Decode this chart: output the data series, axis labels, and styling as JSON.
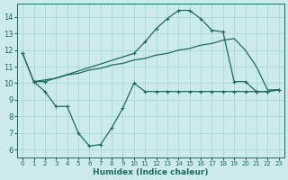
{
  "line1_x": [
    0,
    1,
    2,
    3,
    4,
    5,
    6,
    7,
    8,
    9,
    10,
    11,
    12,
    13,
    14,
    15,
    16,
    17,
    18,
    19,
    20,
    21,
    22,
    23
  ],
  "line1_y": [
    11.8,
    10.1,
    9.5,
    8.6,
    8.6,
    7.0,
    6.2,
    6.3,
    7.3,
    8.5,
    10.0,
    9.5,
    9.5,
    9.5,
    9.5,
    9.5,
    9.5,
    9.5,
    9.5,
    9.5,
    9.5,
    9.5,
    9.5,
    9.6
  ],
  "line2_x": [
    0,
    1,
    2,
    10,
    11,
    12,
    13,
    14,
    15,
    16,
    17,
    18,
    19,
    20,
    21,
    22,
    23
  ],
  "line2_y": [
    11.8,
    10.1,
    10.1,
    11.8,
    12.5,
    13.3,
    13.9,
    14.4,
    14.4,
    13.9,
    13.2,
    13.1,
    10.1,
    10.1,
    9.5,
    9.5,
    9.6
  ],
  "line3_x": [
    1,
    2,
    3,
    4,
    5,
    6,
    7,
    8,
    9,
    10,
    11,
    12,
    13,
    14,
    15,
    16,
    17,
    18,
    19,
    20,
    21,
    22,
    23
  ],
  "line3_y": [
    10.1,
    10.2,
    10.3,
    10.5,
    10.6,
    10.8,
    10.9,
    11.1,
    11.2,
    11.4,
    11.5,
    11.7,
    11.8,
    12.0,
    12.1,
    12.3,
    12.4,
    12.6,
    12.7,
    12.0,
    11.0,
    9.6,
    9.6
  ],
  "color": "#1a6b5e",
  "bg_color": "#cceaea",
  "grid_color": "#a8d8d8",
  "xlabel": "Humidex (Indice chaleur)",
  "xlim": [
    -0.5,
    23.5
  ],
  "ylim": [
    5.5,
    14.8
  ],
  "yticks": [
    6,
    7,
    8,
    9,
    10,
    11,
    12,
    13,
    14
  ],
  "xticks": [
    0,
    1,
    2,
    3,
    4,
    5,
    6,
    7,
    8,
    9,
    10,
    11,
    12,
    13,
    14,
    15,
    16,
    17,
    18,
    19,
    20,
    21,
    22,
    23
  ]
}
